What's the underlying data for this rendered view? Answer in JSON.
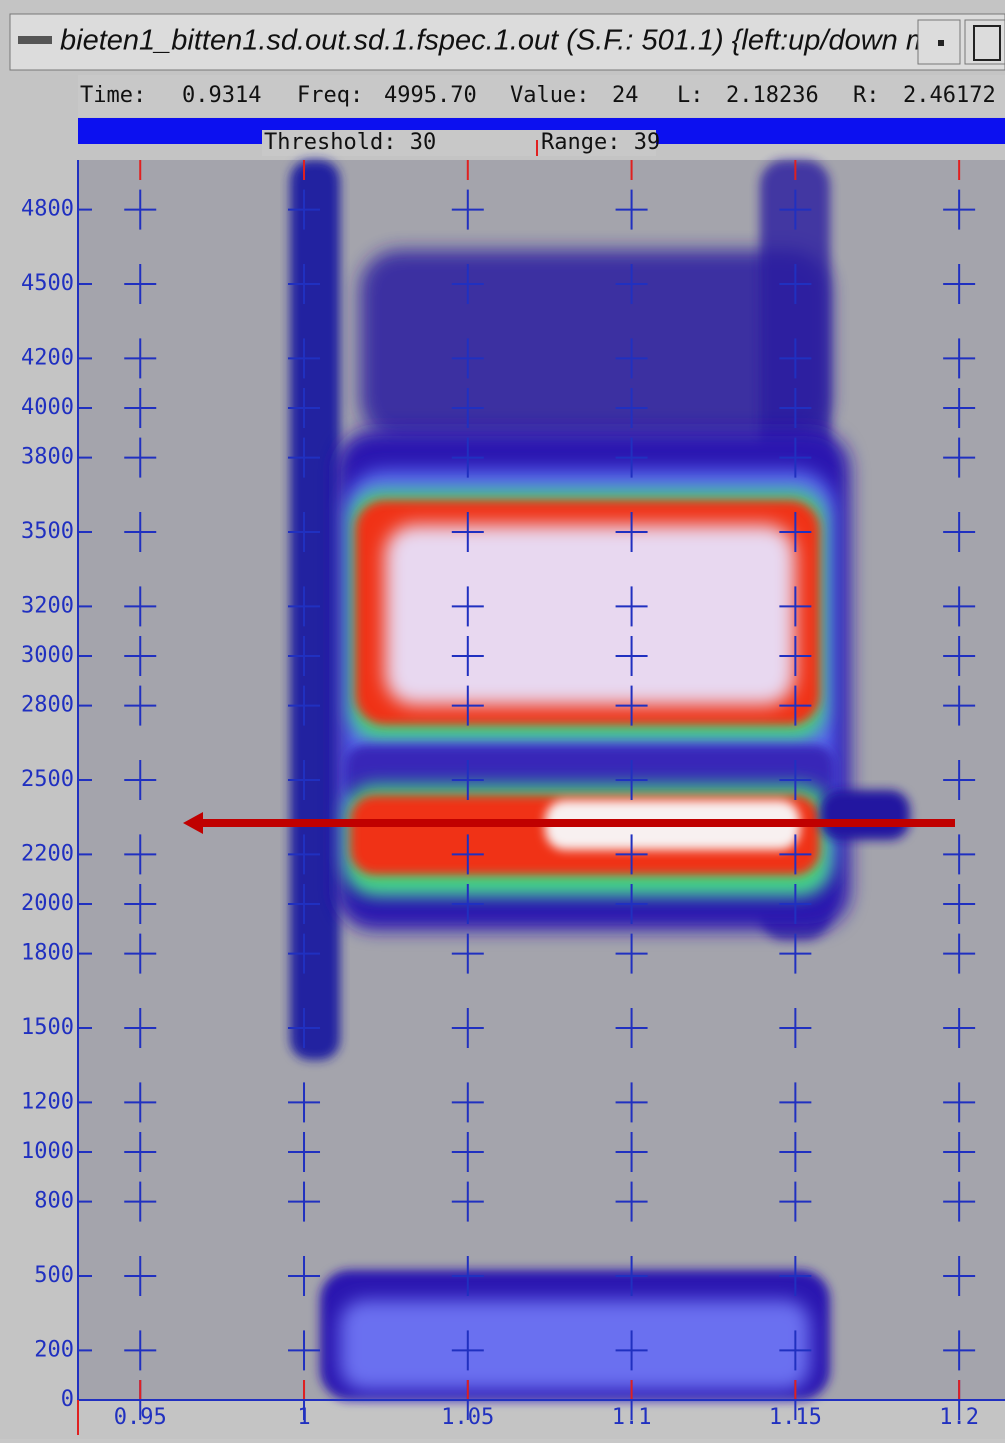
{
  "window": {
    "title": "bieten1_bitten1.sd.out.sd.1.fspec.1.out (S.F.: 501.1) {left:up/down m"
  },
  "status": {
    "time_label": "Time:",
    "time": "0.9314",
    "freq_label": "Freq:",
    "freq": "4995.70",
    "value_label": "Value:",
    "value": "24",
    "l_label": "L:",
    "l": "2.18236",
    "r_label": "R:",
    "r": "2.46172"
  },
  "controls": {
    "threshold": "Threshold: 30",
    "range": "Range: 39"
  },
  "chart_data": {
    "type": "spectrogram",
    "xlim": [
      0.931,
      1.214
    ],
    "xticks": [
      0.95,
      1,
      1.05,
      1.1,
      1.15,
      1.2
    ],
    "ylim": [
      0,
      5000
    ],
    "yticks": [
      0,
      200,
      500,
      800,
      1000,
      1200,
      1500,
      1800,
      2000,
      2200,
      2500,
      2800,
      3000,
      3200,
      3500,
      3800,
      4000,
      4200,
      4500,
      4800
    ]
  }
}
